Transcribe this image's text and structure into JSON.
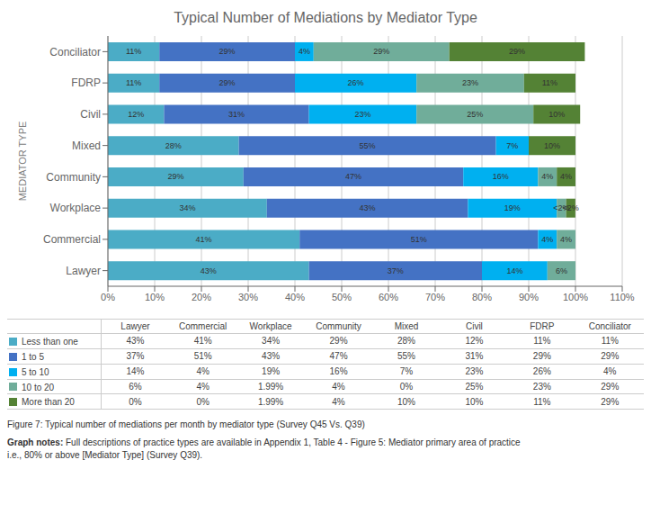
{
  "chart_data": {
    "type": "bar",
    "orientation": "horizontal",
    "stacked": true,
    "data_labels": true,
    "grid": true,
    "title": "Typical Number of Mediations by Mediator Type",
    "ylabel": "MEDIATOR TYPE",
    "categories": [
      "Lawyer",
      "Commercial",
      "Workplace",
      "Community",
      "Mixed",
      "Civil",
      "FDRP",
      "Conciliator"
    ],
    "xlim": [
      0,
      110
    ],
    "xticks": [
      {
        "value": 0,
        "label": "0%"
      },
      {
        "value": 10,
        "label": "10%"
      },
      {
        "value": 20,
        "label": "20%"
      },
      {
        "value": 30,
        "label": "30%"
      },
      {
        "value": 40,
        "label": "40%"
      },
      {
        "value": 50,
        "label": "50%"
      },
      {
        "value": 60,
        "label": "60%"
      },
      {
        "value": 70,
        "label": "70%"
      },
      {
        "value": 80,
        "label": "80%"
      },
      {
        "value": 90,
        "label": "90%"
      },
      {
        "value": 100,
        "label": "100%"
      },
      {
        "value": 110,
        "label": "110%"
      }
    ],
    "series": [
      {
        "name": "Less than one",
        "color": "#4bacc6",
        "values": [
          43,
          41,
          34,
          29,
          28,
          12,
          11,
          11
        ],
        "value_labels": [
          "43%",
          "41%",
          "34%",
          "29%",
          "28%",
          "12%",
          "11%",
          "11%"
        ],
        "table_labels": [
          "43%",
          "41%",
          "34%",
          "29%",
          "28%",
          "12%",
          "11%",
          "11%"
        ]
      },
      {
        "name": "1 to 5",
        "color": "#4472c4",
        "values": [
          37,
          51,
          43,
          47,
          55,
          31,
          29,
          29
        ],
        "value_labels": [
          "37%",
          "51%",
          "43%",
          "47%",
          "55%",
          "31%",
          "29%",
          "29%"
        ],
        "table_labels": [
          "37%",
          "51%",
          "43%",
          "47%",
          "55%",
          "31%",
          "29%",
          "29%"
        ]
      },
      {
        "name": "5 to 10",
        "color": "#00b0f0",
        "values": [
          14,
          4,
          19,
          16,
          7,
          23,
          26,
          4
        ],
        "value_labels": [
          "14%",
          "4%",
          "19%",
          "16%",
          "7%",
          "23%",
          "26%",
          "4%"
        ],
        "table_labels": [
          "14%",
          "4%",
          "19%",
          "16%",
          "7%",
          "23%",
          "26%",
          "4%"
        ]
      },
      {
        "name": "10 to 20",
        "color": "#70ad9a",
        "values": [
          6,
          4,
          1.99,
          4,
          0,
          25,
          23,
          29
        ],
        "value_labels": [
          "6%",
          "4%",
          "<2%",
          "4%",
          null,
          "25%",
          "23%",
          "29%"
        ],
        "table_labels": [
          "6%",
          "4%",
          "1.99%",
          "4%",
          "0%",
          "25%",
          "23%",
          "29%"
        ]
      },
      {
        "name": "More than 20",
        "color": "#548235",
        "values": [
          0,
          0,
          1.99,
          4,
          10,
          10,
          11,
          29
        ],
        "value_labels": [
          null,
          null,
          "<2%",
          "4%",
          "10%",
          "10%",
          "11%",
          "29%"
        ],
        "table_labels": [
          "0%",
          "0%",
          "1.99%",
          "4%",
          "10%",
          "10%",
          "11%",
          "29%"
        ]
      }
    ],
    "annotations": [
      "Figure 7: Typical number of mediations per month by mediator type (Survey Q45 Vs. Q39)",
      "Graph notes: ",
      "Full descriptions of practice types are available in Appendix 1, Table 4 - Figure 5: Mediator primary area of practice\ni.e., 80% or above [Mediator Type] (Survey Q39)."
    ]
  }
}
